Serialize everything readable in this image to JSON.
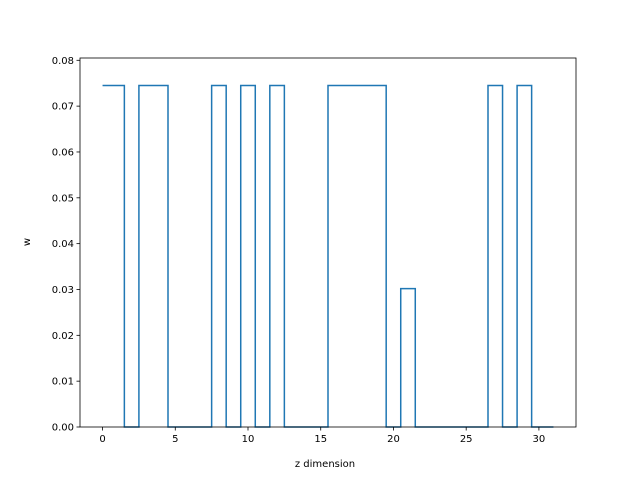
{
  "chart_data": {
    "type": "line",
    "drawstyle": "steps-mid",
    "title": "",
    "xlabel": "z dimension",
    "ylabel": "w",
    "xlim": [
      -1.55,
      32.55
    ],
    "ylim": [
      0.0,
      0.0805
    ],
    "xticks": [
      0,
      5,
      10,
      15,
      20,
      25,
      30
    ],
    "yticks": [
      0.0,
      0.01,
      0.02,
      0.03,
      0.04,
      0.05,
      0.06,
      0.07,
      0.08
    ],
    "ytick_labels": [
      "0.00",
      "0.01",
      "0.02",
      "0.03",
      "0.04",
      "0.05",
      "0.06",
      "0.07",
      "0.08"
    ],
    "grid": false,
    "legend": "none",
    "series": [
      {
        "color": "#1f77b4",
        "x": [
          0,
          1,
          2,
          3,
          4,
          5,
          6,
          7,
          8,
          9,
          10,
          11,
          12,
          13,
          14,
          15,
          16,
          17,
          18,
          19,
          20,
          21,
          22,
          23,
          24,
          25,
          26,
          27,
          28,
          29,
          30,
          31
        ],
        "values": [
          0.0745,
          0.0745,
          0,
          0.0745,
          0.0745,
          0,
          0,
          0,
          0.0745,
          0,
          0.0745,
          0,
          0.0745,
          0,
          0,
          0,
          0.0745,
          0.0745,
          0.0745,
          0.0745,
          0,
          0.0302,
          0,
          0,
          0,
          0,
          0,
          0.0745,
          0,
          0.0745,
          0,
          0
        ]
      }
    ]
  }
}
